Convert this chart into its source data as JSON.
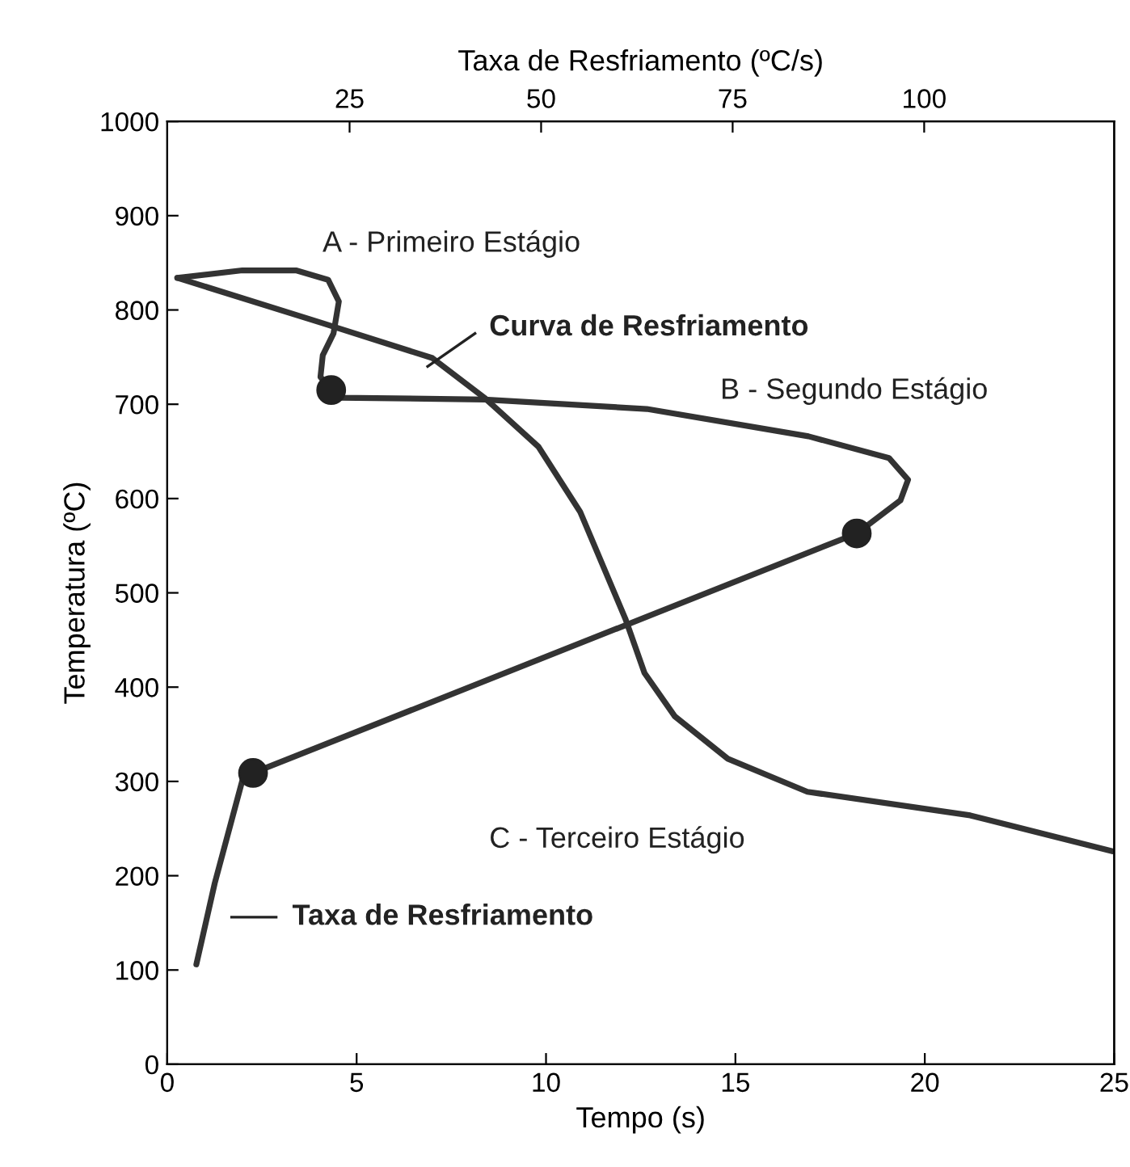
{
  "chart_data": {
    "type": "line",
    "xlabel": "Tempo (s)",
    "ylabel": "Temperatura (ºC)",
    "x2label": "Taxa de Resfriamento (ºC/s)",
    "xlim": [
      0,
      25
    ],
    "xticks": [
      0,
      5,
      10,
      15,
      20,
      25
    ],
    "ylim": [
      0,
      1000
    ],
    "yticks": [
      0,
      100,
      200,
      300,
      400,
      500,
      600,
      700,
      800,
      900,
      1000
    ],
    "x2lim": [
      1.2,
      124.8
    ],
    "x2ticks": [
      25,
      50,
      75,
      100
    ],
    "grid": false,
    "legend": false,
    "line_style": "solid",
    "marker": "none",
    "series": [
      {
        "color": "#333333",
        "x": [
          0.27,
          4.1,
          7.0,
          8.4,
          9.8,
          10.9,
          12.1,
          12.6,
          13.4,
          14.8,
          16.9,
          21.2,
          24.95
        ],
        "values": [
          834,
          786,
          749,
          706,
          655,
          586,
          472,
          415,
          369,
          324,
          289,
          264,
          226
        ]
      },
      {
        "axis": "x2",
        "color": "#333333",
        "x": [
          5.0,
          7.4,
          11.0,
          12.4,
          91.2,
          96.9,
          97.9,
          95.4,
          84.9,
          63.8,
          42.6,
          23.6,
          22.6,
          21.2,
          21.5,
          22.9,
          23.6,
          22.2,
          18.0,
          11.0,
          2.5
        ],
        "values": [
          106,
          192,
          301,
          309,
          563,
          598,
          620,
          643,
          666,
          695,
          705,
          707,
          715,
          729,
          752,
          775,
          809,
          832,
          842,
          842,
          834
        ]
      },
      {
        "type": "scatter",
        "axis": "x2",
        "color": "#222222",
        "marker": "circle",
        "x": [
          12.4,
          91.2,
          22.6
        ],
        "values": [
          309,
          563,
          715
        ]
      }
    ],
    "annotations": [
      "A - Primeiro Estágio",
      "B - Segundo Estágio",
      "C - Terceiro Estágio",
      "Curva de Resfriamento",
      "Taxa de Resfriamento"
    ]
  }
}
